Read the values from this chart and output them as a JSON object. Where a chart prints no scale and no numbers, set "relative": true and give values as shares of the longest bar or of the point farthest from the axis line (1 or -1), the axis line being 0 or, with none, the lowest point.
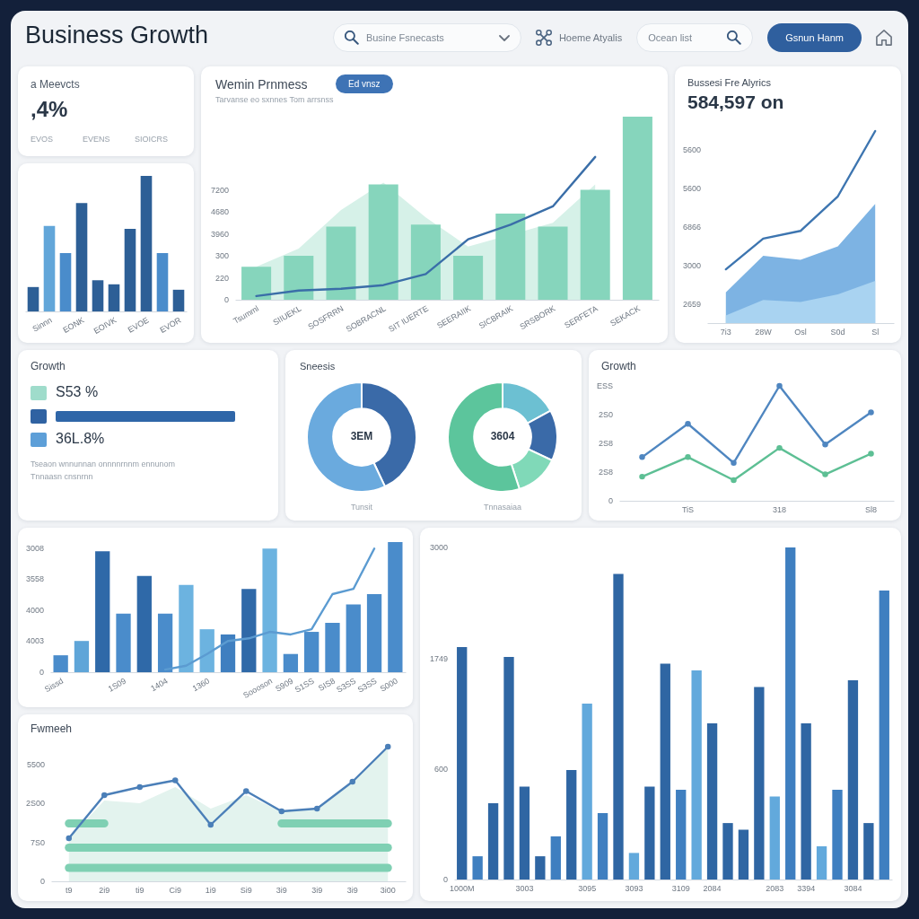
{
  "chart_data": [
    {
      "type": "other",
      "title": "Business Growth",
      "annotations": [
        "Busine Fsnecasts",
        "Hoeme Atyalis",
        "Ocean list",
        "Gsnun Hanm"
      ]
    },
    {
      "type": "other",
      "title": "a Meevcts",
      "annotations": [
        ",4%",
        "EVOS",
        "EVENS",
        "SIOICRS"
      ]
    },
    {
      "type": "bar",
      "relative": true,
      "categories": [
        null,
        "Sinnn",
        null,
        "EONK",
        null,
        "EOIVK",
        null,
        "EVOE",
        null,
        "EVOR"
      ],
      "values": [
        0.18,
        0.63,
        0.43,
        0.8,
        0.23,
        0.2,
        0.61,
        1,
        0.43,
        0.16
      ],
      "colors": [
        "#2d5f96",
        "#62a6d9",
        "#4a8ccb",
        "#2d5f96",
        "#2d5f96",
        "#2d5f96",
        "#2d5f96",
        "#2d5f96",
        "#4a8ccb",
        "#2d5f96"
      ]
    },
    {
      "type": "bar",
      "relative": true,
      "title": "Wemin Prnmess",
      "subtitle": "Tarvanse eo sxnnes Tom arrsnss",
      "annotations": [
        "Ed vnsz",
        "0",
        "220",
        "300",
        "3960",
        "4680",
        "7200"
      ],
      "categories": [
        "Tsumml",
        "SIIUEKL",
        "SOSFRRN",
        "SOBRACNL",
        "SIT IUERTE",
        "SEERAIIK",
        "SICBRAIK",
        "SRSBORK",
        "SERFETA",
        "SEKACK"
      ],
      "series": [
        {
          "type": "area",
          "color": "#d6f1e8",
          "values": [
            0.18,
            0.28,
            0.49,
            0.64,
            0.45,
            0.29,
            null,
            0.42,
            0.63,
            null
          ]
        },
        {
          "type": "bar",
          "color": "#86d5bc",
          "values": [
            0.18,
            0.24,
            0.4,
            0.63,
            0.41,
            0.24,
            0.47,
            0.4,
            0.6,
            1
          ]
        },
        {
          "type": "line",
          "color": "#3a6ea8",
          "values": [
            0.02,
            0.05,
            0.06,
            0.08,
            0.14,
            0.33,
            0.41,
            0.51,
            0.78,
            null
          ]
        }
      ]
    },
    {
      "type": "area",
      "relative": true,
      "title": "Bussesi Fre Alyrics",
      "subtitle": "584,597 on",
      "annotations": [
        "2659",
        "3000",
        "6866",
        "5600",
        "5600"
      ],
      "categories": [
        "7i3",
        "28W",
        "Osl",
        "S0d",
        "Sl"
      ],
      "series": [
        {
          "type": "area",
          "color": "#7db3e3",
          "values": [
            0.16,
            0.35,
            0.33,
            0.4,
            0.62
          ]
        },
        {
          "type": "area",
          "color": "#a9d3f1",
          "values": [
            0.04,
            0.12,
            0.11,
            0.15,
            0.22
          ]
        },
        {
          "type": "line",
          "color": "#3d75b0",
          "values": [
            0.28,
            0.44,
            0.48,
            0.66,
            1
          ]
        }
      ]
    },
    {
      "type": "other",
      "title": "Growth",
      "annotations": [
        "S53 %",
        "36L.8%",
        "Tseaon wnnunnan onnnnrnnm ennunom",
        "Tnnaasn cnsnrnn"
      ]
    },
    {
      "type": "donut",
      "title": "Sneesis",
      "categories": [
        null,
        null
      ],
      "values": [
        43,
        57
      ],
      "colors": [
        "#3a6aa8",
        "#6aaade"
      ],
      "annotations": [
        "3EM",
        "Tunsit"
      ]
    },
    {
      "type": "donut",
      "categories": [
        null,
        null,
        null,
        null
      ],
      "values": [
        17,
        15,
        13,
        55
      ],
      "colors": [
        "#6cc0d2",
        "#3a6aa8",
        "#80d9b8",
        "#5cc59c"
      ],
      "annotations": [
        "3604",
        "Tnnasaiaa"
      ]
    },
    {
      "type": "line",
      "relative": true,
      "title": "Growth",
      "annotations": [
        "0",
        "2S8",
        "2S8",
        "2S0",
        "ESS"
      ],
      "categories": [
        null,
        "TiS",
        null,
        "318",
        null,
        "Sl8"
      ],
      "series": [
        {
          "color": "#4f86c0",
          "values": [
            0.38,
            0.67,
            0.33,
            1,
            0.49,
            0.77
          ]
        },
        {
          "color": "#5dbf94",
          "values": [
            0.21,
            0.38,
            0.18,
            0.46,
            0.23,
            0.41
          ]
        }
      ],
      "marker": "circle"
    },
    {
      "type": "bar",
      "relative": true,
      "annotations": [
        "0",
        "4003",
        "4000",
        "3558",
        "3008"
      ],
      "categories": [
        "Sissd",
        null,
        null,
        "1S09",
        null,
        "1404",
        null,
        "1360",
        null,
        null,
        "Soooson",
        "S909",
        "S1SS",
        "SIS8",
        "S3SS",
        "S3SS",
        "S000"
      ],
      "series": [
        {
          "type": "bar",
          "values": [
            0.13,
            0.24,
            0.93,
            0.45,
            0.74,
            0.45,
            0.67,
            0.33,
            0.29,
            0.64,
            0.95,
            0.14,
            0.31,
            0.38,
            0.52,
            0.6,
            1
          ],
          "colors": [
            "#4a8ccb",
            "#5fa5d8",
            "#2f69a8",
            "#4a8ccb",
            "#2f69a8",
            "#4a8ccb",
            "#6cb3e0",
            "#6cb3e0",
            "#3f7fc0",
            "#2f69a8",
            "#6cb3e0",
            "#4a8ccb",
            "#4a8ccb",
            "#4a8ccb",
            "#4a8ccb",
            "#4a8ccb",
            "#4a8ccb"
          ]
        },
        {
          "type": "line",
          "color": "#5b9bd1",
          "values": [
            null,
            null,
            null,
            null,
            null,
            0.02,
            0.05,
            0.14,
            0.24,
            0.26,
            0.31,
            0.29,
            0.33,
            0.6,
            0.64,
            0.95,
            null
          ]
        }
      ]
    },
    {
      "type": "bar",
      "relative": true,
      "annotations": [
        "0",
        "600",
        "1749",
        "3000"
      ],
      "categories": [
        "1000M",
        null,
        null,
        null,
        "3003",
        null,
        null,
        null,
        "3095",
        null,
        null,
        "3093",
        null,
        null,
        "3109",
        null,
        "2084",
        null,
        null,
        null,
        "2083",
        null,
        "3394",
        null,
        null,
        "3084",
        null,
        null
      ],
      "values": [
        0.7,
        0.07,
        0.23,
        0.67,
        0.28,
        0.07,
        0.13,
        0.33,
        0.53,
        0.2,
        0.92,
        0.08,
        0.28,
        0.65,
        0.27,
        0.63,
        0.47,
        0.17,
        0.15,
        0.58,
        0.25,
        1,
        0.47,
        0.1,
        0.27,
        0.6,
        0.17,
        0.87
      ],
      "colors": [
        "#2f66a3",
        "#3f7fc0",
        "#2f66a3",
        "#2f66a3",
        "#2f66a3",
        "#2f66a3",
        "#3f7fc0",
        "#2f66a3",
        "#62a9dc",
        "#3f7fc0",
        "#2f66a3",
        "#62a9dc",
        "#2f66a3",
        "#2f66a3",
        "#3f7fc0",
        "#62a9dc",
        "#2f66a3",
        "#2f66a3",
        "#2f66a3",
        "#2f66a3",
        "#62a9dc",
        "#3f7fc0",
        "#2f66a3",
        "#62a9dc",
        "#3f7fc0",
        "#2f66a3",
        "#2f66a3",
        "#3f7fc0"
      ]
    },
    {
      "type": "line",
      "relative": true,
      "title": "Fwmeeh",
      "annotations": [
        "0",
        "7S0",
        "2S00",
        "5500"
      ],
      "categories": [
        "t9",
        "2i9",
        "ti9",
        "Ci9",
        "1i9",
        "Si9",
        "3i9",
        "3i9",
        "3i9",
        "3i00"
      ],
      "series": [
        {
          "type": "line",
          "color": "#4b7fb8",
          "values": [
            0.32,
            0.64,
            0.7,
            0.75,
            0.42,
            0.67,
            0.52,
            0.54,
            0.74,
            1
          ]
        },
        {
          "type": "line",
          "color": "#7fd0b3",
          "marker": "none",
          "values": [
            0.43,
            0.43,
            null,
            null,
            null,
            null,
            0.43,
            0.43,
            0.43,
            0.43
          ]
        },
        {
          "type": "line",
          "color": "#7fd0b3",
          "marker": "none",
          "values": [
            0.25,
            0.25,
            0.25,
            0.25,
            0.25,
            0.25,
            0.25,
            0.25,
            0.25,
            0.25
          ]
        },
        {
          "type": "line",
          "color": "#7fd0b3",
          "marker": "none",
          "values": [
            0.1,
            0.1,
            0.1,
            0.1,
            0.1,
            0.1,
            0.1,
            0.1,
            0.1,
            0.1
          ]
        },
        {
          "type": "area",
          "color": "#e3f3ee",
          "marker": "none",
          "values": [
            0.32,
            0.6,
            0.58,
            0.7,
            0.54,
            0.64,
            0.52,
            0.54,
            0.74,
            1
          ]
        }
      ],
      "marker": "circle"
    }
  ]
}
